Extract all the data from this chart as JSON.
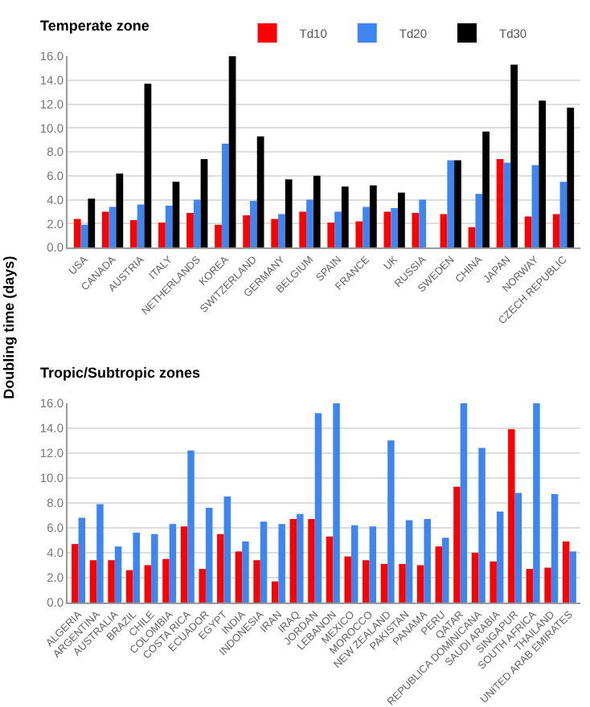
{
  "chart_data": [
    {
      "type": "bar",
      "title": "Temperate zone",
      "ylabel": "Doubling time (days)",
      "categories": [
        "USA",
        "CANADA",
        "AUSTRIA",
        "ITALY",
        "NETHERLANDS",
        "KOREA",
        "SWITZERLAND",
        "GERMANY",
        "BELGIUM",
        "SPAIN",
        "FRANCE",
        "UK",
        "RUSSIA",
        "SWEDEN",
        "CHINA",
        "JAPAN",
        "NORWAY",
        "CZECH REPUBLIC"
      ],
      "series": [
        {
          "name": "Td10",
          "color": "#ff0000",
          "values": [
            2.4,
            3.0,
            2.3,
            2.1,
            2.9,
            1.9,
            2.7,
            2.4,
            3.0,
            2.1,
            2.2,
            3.0,
            2.9,
            2.8,
            1.7,
            7.4,
            2.6,
            2.8
          ]
        },
        {
          "name": "Td20",
          "color": "#3d85f0",
          "values": [
            1.9,
            3.4,
            3.6,
            3.5,
            4.0,
            8.7,
            3.9,
            2.8,
            4.0,
            3.0,
            3.4,
            3.3,
            4.0,
            7.3,
            4.5,
            7.1,
            6.9,
            5.5
          ]
        },
        {
          "name": "Td30",
          "color": "#000000",
          "values": [
            4.1,
            6.2,
            13.7,
            5.5,
            7.4,
            16.0,
            9.3,
            5.7,
            6.0,
            5.1,
            5.2,
            4.6,
            null,
            7.3,
            9.7,
            15.3,
            12.3,
            11.7
          ]
        }
      ],
      "ylim": [
        0,
        16
      ],
      "yticks": [
        {
          "value": 0,
          "label": "0.0"
        },
        {
          "value": 2,
          "label": "2.0"
        },
        {
          "value": 4,
          "label": "4.0"
        },
        {
          "value": 6,
          "label": "6.0"
        },
        {
          "value": 8,
          "label": "8.0"
        },
        {
          "value": 10,
          "label": "10.0"
        },
        {
          "value": 12,
          "label": "12.0"
        },
        {
          "value": 14,
          "label": "14.0"
        },
        {
          "value": 16,
          "label": "16.0"
        }
      ],
      "grid": "y",
      "legend": "top"
    },
    {
      "type": "bar",
      "title": "Tropic/Subtropic zones",
      "categories": [
        "ALGERIA",
        "ARGENTINA",
        "AUSTRALIA",
        "BRAZIL",
        "CHILE",
        "COLOMBIA",
        "COSTA RICA",
        "ECUADOR",
        "EGYPT",
        "INDIA",
        "INDONESIA",
        "IRAN",
        "IRAQ",
        "JORDAN",
        "LEBANON",
        "MEXICO",
        "MOROCCO",
        "NEW ZEALAND",
        "PAKISTAN",
        "PANAMA",
        "PERU",
        "QATAR",
        "REPUBLICA DOMINICANA",
        "SAUDI ARABIA",
        "SINGAPUR",
        "SOUTH AFRICA",
        "THAILAND",
        "UNITED ARAB EMIRATES"
      ],
      "series": [
        {
          "color": "#ff0000",
          "values": [
            4.7,
            3.4,
            3.4,
            2.6,
            3.0,
            3.5,
            6.1,
            2.7,
            5.5,
            4.1,
            3.4,
            1.7,
            6.7,
            6.7,
            5.3,
            3.7,
            3.4,
            3.1,
            3.1,
            3.0,
            4.5,
            9.3,
            4.0,
            3.3,
            13.9,
            2.7,
            2.8,
            4.9
          ]
        },
        {
          "color": "#3d85f0",
          "values": [
            6.8,
            7.9,
            4.5,
            5.6,
            5.5,
            6.3,
            12.2,
            7.6,
            8.5,
            4.9,
            6.5,
            6.3,
            7.1,
            15.2,
            16.0,
            6.2,
            6.1,
            13.0,
            6.6,
            6.7,
            5.2,
            16.0,
            12.4,
            7.3,
            8.8,
            16.0,
            8.7,
            4.1
          ]
        }
      ],
      "ylim": [
        0,
        16
      ],
      "yticks": [
        {
          "value": 0,
          "label": "0.0"
        },
        {
          "value": 2,
          "label": "2.0"
        },
        {
          "value": 4,
          "label": "4.0"
        },
        {
          "value": 6,
          "label": "6.0"
        },
        {
          "value": 8,
          "label": "8.0"
        },
        {
          "value": 10,
          "label": "10.0"
        },
        {
          "value": 12,
          "label": "12.0"
        },
        {
          "value": 14,
          "label": "14.0"
        },
        {
          "value": 16,
          "label": "16.0"
        }
      ],
      "grid": "y"
    }
  ]
}
